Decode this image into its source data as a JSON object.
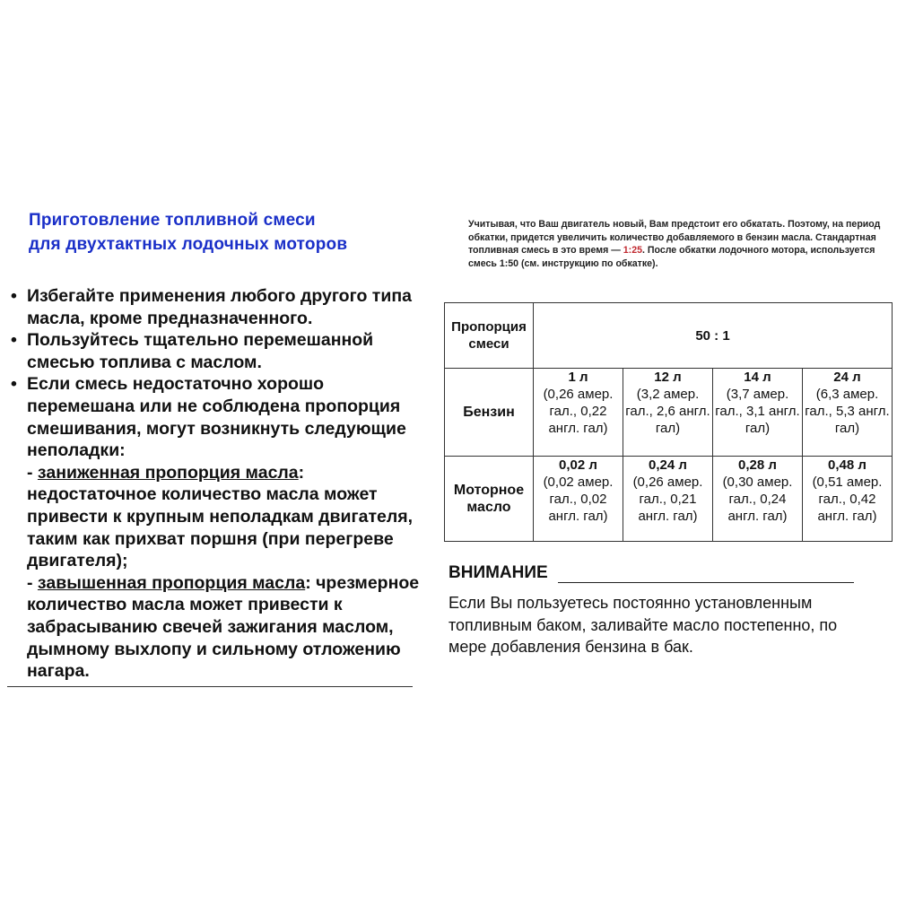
{
  "title": [
    "Приготовление топливной смеси",
    "для двухтактных лодочных моторов"
  ],
  "bullets": [
    "Избегайте применения любого другого типа масла, кроме предназначенного.",
    "Пользуйтесь тщательно перемешанной смесью топлива с маслом.",
    "Если смесь недостаточно хорошо перемешана или не соблюдена пропорция смешивания, могут возникнуть следующие неполадки:"
  ],
  "low_label": "- ",
  "low_u": "заниженная пропорция масла",
  "low_text": ": недостаточное количество масла может привести к крупным неполадкам двигателя, таким как прихват поршня (при перегреве двигателя);",
  "high_label": "- ",
  "high_u": "завышенная пропорция масла",
  "high_text": ": чрезмерное количество масла может привести к забрасыванию свечей зажигания маслом, дымному выхлопу и сильному отложению нагара.",
  "note": {
    "a": "Учитывая, что Ваш двигатель новый, Вам предстоит  его обкатать. Поэтому, на период обкатки, придется увеличить количество добавляемого в бензин масла. Стандартная топливная смесь в это время — ",
    "red": "1:25",
    "b": ".  После обкатки лодочного мотора, используется смесь 1:50 (см. инструкцию по обкатке)."
  },
  "table": {
    "ratio_label": "Пропорция смеси",
    "ratio": "50 : 1",
    "rows": [
      {
        "label": "Бензин",
        "cells": [
          {
            "v": "1 л",
            "d": "(0,26 амер. гал., 0,22 англ. гал)"
          },
          {
            "v": "12 л",
            "d": "(3,2 амер. гал., 2,6 англ. гал)"
          },
          {
            "v": "14 л",
            "d": "(3,7 амер. гал., 3,1 англ. гал)"
          },
          {
            "v": "24 л",
            "d": "(6,3 амер. гал., 5,3 англ. гал)"
          }
        ]
      },
      {
        "label": "Моторное масло",
        "cells": [
          {
            "v": "0,02 л",
            "d": "(0,02 амер. гал., 0,02 англ. гал)"
          },
          {
            "v": "0,24 л",
            "d": "(0,26 амер. гал., 0,21 англ. гал)"
          },
          {
            "v": "0,28 л",
            "d": "(0,30 амер. гал., 0,24 англ. гал)"
          },
          {
            "v": "0,48 л",
            "d": "(0,51 амер. гал., 0,42 англ. гал)"
          }
        ]
      }
    ]
  },
  "warning": {
    "title": "ВНИМАНИЕ",
    "text": "Если Вы пользуетесь постоянно установленным топливным баком, заливайте масло постепенно, по мере добавления бензина в бак."
  }
}
